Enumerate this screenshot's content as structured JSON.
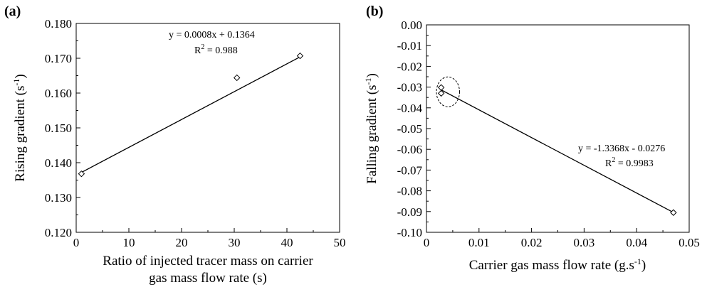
{
  "chart_data": [
    {
      "type": "scatter",
      "panel_label": "(a)",
      "x": [
        1,
        30.5,
        42.5
      ],
      "y": [
        0.1368,
        0.1644,
        0.1707
      ],
      "xlim": [
        0,
        50
      ],
      "ylim": [
        0.12,
        0.18
      ],
      "xticks": [
        0,
        10,
        20,
        30,
        40,
        50
      ],
      "yticks": [
        0.12,
        0.13,
        0.14,
        0.15,
        0.16,
        0.17,
        0.18
      ],
      "xtick_labels": [
        "0",
        "10",
        "20",
        "30",
        "40",
        "50"
      ],
      "ytick_labels": [
        "0.120",
        "0.130",
        "0.140",
        "0.150",
        "0.160",
        "0.170",
        "0.180"
      ],
      "xlabel_lines": [
        "Ratio of injected tracer mass on carrier",
        "gas mass flow rate (s)"
      ],
      "ylabel": "Rising gradient (s",
      "ylabel_sup": "-1",
      "ylabel_close": ")",
      "fit": {
        "slope": 0.0008,
        "intercept": 0.1364,
        "x_range": [
          1,
          42.5
        ]
      },
      "equation": "y = 0.0008x + 0.1364",
      "r2_label": "R",
      "r2_sup": "2",
      "r2_value": " = 0.988",
      "grid": false,
      "marker": "diamond"
    },
    {
      "type": "scatter",
      "panel_label": "(b)",
      "x": [
        0.0028,
        0.0028,
        0.047
      ],
      "y": [
        -0.0302,
        -0.033,
        -0.0905
      ],
      "xlim": [
        0,
        0.05
      ],
      "ylim": [
        -0.1,
        0.0
      ],
      "xticks": [
        0,
        0.01,
        0.02,
        0.03,
        0.04,
        0.05
      ],
      "yticks": [
        0,
        -0.01,
        -0.02,
        -0.03,
        -0.04,
        -0.05,
        -0.06,
        -0.07,
        -0.08,
        -0.09,
        -0.1
      ],
      "xtick_labels": [
        "0",
        "0.01",
        "0.02",
        "0.03",
        "0.04",
        "0.05"
      ],
      "ytick_labels": [
        "0.00",
        "-0.01",
        "-0.02",
        "-0.03",
        "-0.04",
        "-0.05",
        "-0.06",
        "-0.07",
        "-0.08",
        "-0.09",
        "-0.10"
      ],
      "xlabel": "Carrier gas mass flow rate (g.s",
      "xlabel_sup": "-1",
      "xlabel_close": ")",
      "ylabel": "Falling gradient (s",
      "ylabel_sup": "-1",
      "ylabel_close": ")",
      "fit": {
        "slope": -1.3368,
        "intercept": -0.0276,
        "x_range": [
          0.0028,
          0.047
        ]
      },
      "equation": "y = -1.3368x - 0.0276",
      "r2_label": "R",
      "r2_sup": "2",
      "r2_value": " = 0.9983",
      "grid": false,
      "marker": "diamond",
      "annotation": {
        "type": "dashed-ellipse",
        "center": [
          0.0041,
          -0.0323
        ],
        "rx": 0.0022,
        "ry": 0.0072
      }
    }
  ]
}
